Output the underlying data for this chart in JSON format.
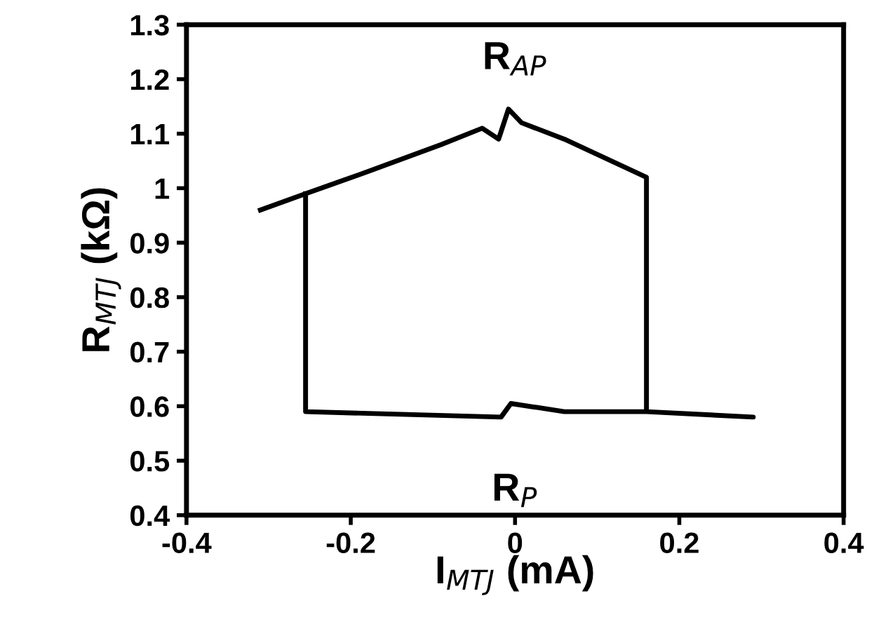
{
  "chart_data": {
    "type": "line",
    "xlabel": "I$_{MTJ}$ (mA)",
    "ylabel": "R$_{MTJ}$ (kΩ)",
    "annotations": [
      "R$_{AP}$",
      "R$_{P}$"
    ],
    "series": [
      {
        "color": "#000000",
        "x": [
          -0.31,
          -0.255,
          -0.18,
          -0.09,
          -0.04,
          -0.02,
          -0.008,
          0.008,
          0.06,
          0.16,
          0.16,
          0.29,
          0.16,
          0.06,
          -0.005,
          -0.017,
          -0.255,
          -0.255
        ],
        "values": [
          0.96,
          0.99,
          1.03,
          1.08,
          1.11,
          1.09,
          1.145,
          1.12,
          1.09,
          1.02,
          0.59,
          0.58,
          0.59,
          0.59,
          0.605,
          0.58,
          0.59,
          0.99
        ]
      }
    ],
    "xlim": [
      -0.4,
      0.4
    ],
    "xticks": [
      -0.4,
      -0.2,
      {
        "value": 0,
        "label": "0"
      },
      0.2,
      0.4
    ],
    "ylim": [
      0.4,
      1.3
    ],
    "yticks": [
      0.4,
      0.5,
      0.6,
      0.7,
      0.8,
      0.9,
      {
        "value": 1,
        "label": "1"
      },
      1.1,
      1.2,
      1.3
    ],
    "grid": false,
    "legend": false,
    "marker": "none",
    "line_style": "solid"
  }
}
